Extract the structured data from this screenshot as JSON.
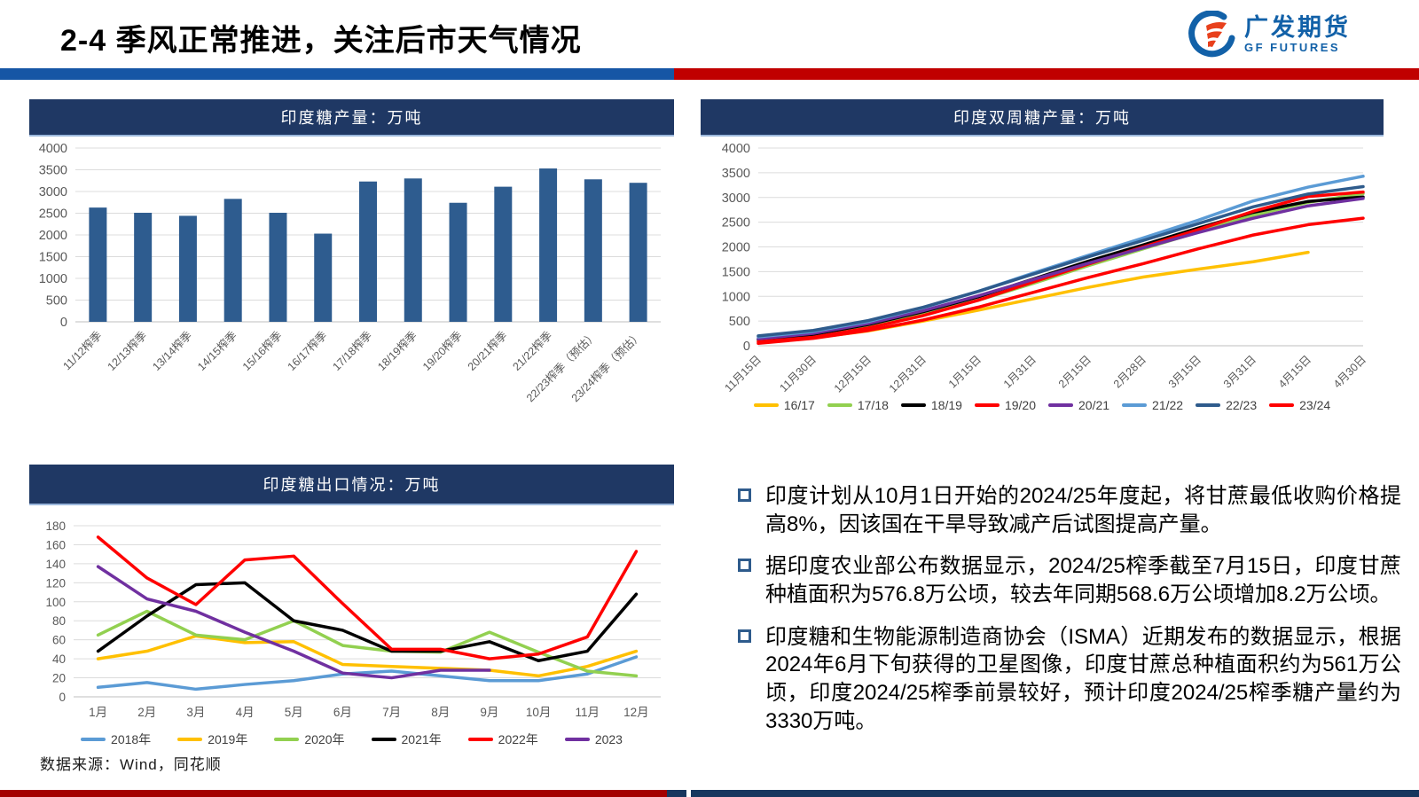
{
  "header": {
    "title": "2-4 季风正常推进，关注后市天气情况",
    "logo_cn": "广发期货",
    "logo_en": "GF FUTURES"
  },
  "colors": {
    "panel_header_bg": "#1F3864",
    "bar_fill": "#2E5C8F",
    "top_bar_blue": "#1656A5",
    "top_bar_red": "#C00000",
    "bottom_bar_red": "#A40000",
    "bottom_bar_navy": "#17375E",
    "bullet_marker_border": "#2E5B8C"
  },
  "chart_data": [
    {
      "type": "bar",
      "title": "印度糖产量：万吨",
      "categories": [
        "11/12榨季",
        "12/13榨季",
        "13/14榨季",
        "14/15榨季",
        "15/16榨季",
        "16/17榨季",
        "17/18榨季",
        "18/19榨季",
        "19/20榨季",
        "20/21榨季",
        "21/22榨季",
        "22/23榨季（预估）",
        "23/24榨季（预估）"
      ],
      "values": [
        2630,
        2510,
        2440,
        2830,
        2510,
        2030,
        3230,
        3300,
        2740,
        3110,
        3530,
        3280,
        3200
      ],
      "bar_color": "#2E5C8F",
      "xlabel": "",
      "ylabel": "",
      "ylim": [
        0,
        4000
      ],
      "ystep": 500,
      "grid": true,
      "legend": "none"
    },
    {
      "type": "line",
      "title": "印度双周糖产量：万吨",
      "categories": [
        "11月15日",
        "11月30日",
        "12月15日",
        "12月31日",
        "1月15日",
        "1月31日",
        "2月15日",
        "2月28日",
        "3月15日",
        "3月31日",
        "4月15日",
        "4月30日"
      ],
      "series": [
        {
          "name": "16/17",
          "color": "#FFC000",
          "values": [
            100,
            160,
            300,
            500,
            720,
            950,
            1180,
            1390,
            1550,
            1700,
            1890,
            null
          ]
        },
        {
          "name": "17/18",
          "color": "#92D050",
          "values": [
            120,
            210,
            390,
            640,
            920,
            1260,
            1620,
            1960,
            2300,
            2640,
            2900,
            3080
          ]
        },
        {
          "name": "18/19",
          "color": "#000000",
          "values": [
            130,
            230,
            430,
            690,
            990,
            1350,
            1710,
            2040,
            2380,
            2700,
            2920,
            3010
          ]
        },
        {
          "name": "19/20",
          "color": "#FF0000",
          "values": [
            80,
            170,
            360,
            610,
            920,
            1290,
            1650,
            2000,
            2350,
            2720,
            3020,
            3110
          ]
        },
        {
          "name": "20/21",
          "color": "#7030A0",
          "values": [
            140,
            250,
            450,
            710,
            1010,
            1340,
            1670,
            1980,
            2290,
            2580,
            2830,
            2980
          ]
        },
        {
          "name": "21/22",
          "color": "#5B9BD5",
          "values": [
            180,
            290,
            490,
            770,
            1100,
            1470,
            1830,
            2180,
            2540,
            2930,
            3210,
            3430
          ]
        },
        {
          "name": "22/23",
          "color": "#2E5B8C",
          "values": [
            200,
            310,
            510,
            780,
            1100,
            1450,
            1800,
            2130,
            2470,
            2810,
            3070,
            3220
          ]
        },
        {
          "name": "23/24",
          "color": "#FF0000",
          "values": [
            50,
            150,
            310,
            520,
            780,
            1080,
            1380,
            1660,
            1960,
            2240,
            2450,
            2580
          ]
        }
      ],
      "xlabel": "",
      "ylabel": "",
      "ylim": [
        0,
        4000
      ],
      "ystep": 500,
      "grid": true,
      "legend_position": "bottom"
    },
    {
      "type": "line",
      "title": "印度糖出口情况：万吨",
      "categories": [
        "1月",
        "2月",
        "3月",
        "4月",
        "5月",
        "6月",
        "7月",
        "8月",
        "9月",
        "10月",
        "11月",
        "12月"
      ],
      "series": [
        {
          "name": "2018年",
          "color": "#5B9BD5",
          "values": [
            10,
            15,
            8,
            13,
            17,
            24,
            27,
            22,
            17,
            17,
            24,
            42
          ]
        },
        {
          "name": "2019年",
          "color": "#FFC000",
          "values": [
            40,
            48,
            64,
            57,
            58,
            34,
            32,
            30,
            28,
            22,
            32,
            48
          ]
        },
        {
          "name": "2020年",
          "color": "#92D050",
          "values": [
            65,
            90,
            65,
            60,
            80,
            54,
            48,
            47,
            68,
            47,
            27,
            22
          ]
        },
        {
          "name": "2021年",
          "color": "#000000",
          "values": [
            48,
            85,
            118,
            120,
            80,
            70,
            48,
            48,
            58,
            38,
            48,
            108
          ]
        },
        {
          "name": "2022年",
          "color": "#FF0000",
          "values": [
            168,
            125,
            97,
            144,
            148,
            98,
            50,
            50,
            40,
            45,
            63,
            153
          ]
        },
        {
          "name": "2023",
          "color": "#7030A0",
          "values": [
            137,
            103,
            90,
            68,
            48,
            25,
            20,
            28,
            28,
            null,
            null,
            null
          ]
        }
      ],
      "xlabel": "",
      "ylabel": "",
      "ylim": [
        0,
        180
      ],
      "ystep": 20,
      "grid": true,
      "legend_position": "bottom"
    }
  ],
  "bullets": [
    {
      "text": "印度计划从10月1日开始的2024/25年度起，将甘蔗最低收购价格提高8%，因该国在干旱导致减产后试图提高产量。"
    },
    {
      "text": "据印度农业部公布数据显示，2024/25榨季截至7月15日，印度甘蔗种植面积为576.8万公顷，较去年同期568.6万公顷增加8.2万公顷。"
    },
    {
      "text": "印度糖和生物能源制造商协会（ISMA）近期发布的数据显示，根据2024年6月下旬获得的卫星图像，印度甘蔗总种植面积约为561万公顷，印度2024/25榨季前景较好，预计印度2024/25榨季糖产量约为3330万吨。"
    }
  ],
  "footer": {
    "source": "数据来源：Wind，同花顺"
  }
}
